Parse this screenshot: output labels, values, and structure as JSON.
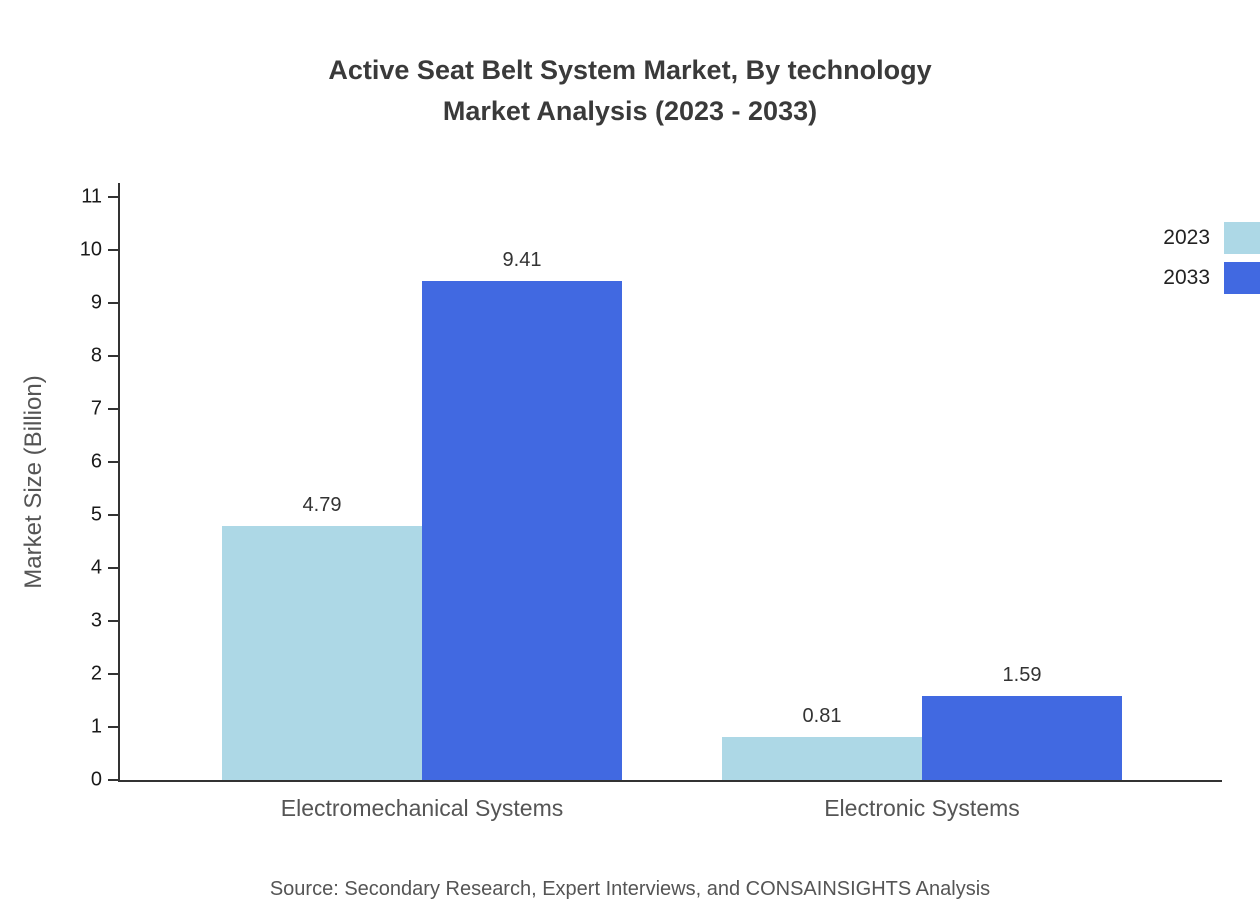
{
  "title_line1": "Active Seat Belt System Market, By technology",
  "title_line2": "Market Analysis (2023 - 2033)",
  "source": "Source: Secondary Research, Expert Interviews, and CONSAINSIGHTS Analysis",
  "chart_data": {
    "type": "bar",
    "title": "Active Seat Belt System Market, By technology Market Analysis (2023 - 2033)",
    "categories": [
      "Electromechanical Systems",
      "Electronic Systems"
    ],
    "series": [
      {
        "name": "2023",
        "color": "#ADD8E6",
        "values": [
          4.79,
          0.81
        ]
      },
      {
        "name": "2033",
        "color": "#4169E1",
        "values": [
          9.41,
          1.59
        ]
      }
    ],
    "xlabel": "",
    "ylabel": "Market Size (Billion)",
    "ylim": [
      0,
      11
    ],
    "ytick_step": 1,
    "grid": false,
    "legend_position": "top-right",
    "axis_color": "#333333",
    "text_color": "#555555"
  }
}
